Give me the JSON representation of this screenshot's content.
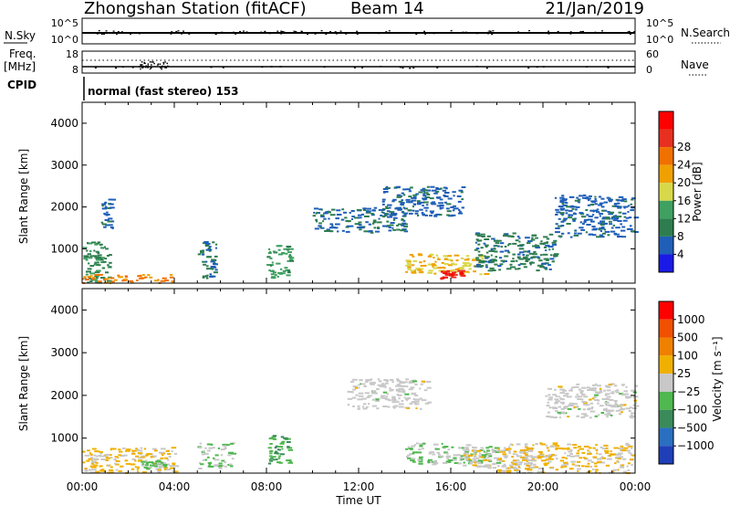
{
  "header": {
    "station": "Zhongshan Station (fitACF)",
    "beam": "Beam 14",
    "date": "21/Jan/2019"
  },
  "noise_panel": {
    "left_label": "N.Sky",
    "right_label": "N.Search",
    "left_ticks": [
      "10^5",
      "10^0"
    ],
    "right_ticks": [
      "10^5",
      "10^0"
    ]
  },
  "freq_panel": {
    "left_label_1": "Freq.",
    "left_label_2": "[MHz]",
    "right_label": "Nave",
    "left_ticks": [
      "18",
      "8"
    ],
    "right_ticks": [
      "60",
      "0"
    ]
  },
  "cpid": {
    "label": "CPID",
    "value": "normal (fast stereo) 153"
  },
  "x_axis": {
    "label": "Time UT",
    "ticks": [
      "00:00",
      "04:00",
      "08:00",
      "12:00",
      "16:00",
      "20:00",
      "00:00"
    ]
  },
  "power_panel": {
    "ylabel": "Slant Range [km]",
    "yticks": [
      "1000",
      "2000",
      "3000",
      "4000"
    ],
    "colorbar_label": "Power [dB]",
    "colorbar_ticks": [
      "4",
      "8",
      "12",
      "16",
      "20",
      "24",
      "28"
    ],
    "colors": [
      "#1a1ae6",
      "#1f5fb8",
      "#2e7d4f",
      "#3fa060",
      "#d8d84a",
      "#f0a000",
      "#f07000",
      "#e83020",
      "#ff0000"
    ]
  },
  "velocity_panel": {
    "ylabel": "Slant Range [km]",
    "yticks": [
      "1000",
      "2000",
      "3000",
      "4000"
    ],
    "colorbar_label": "Velocity [m s⁻¹]",
    "colorbar_ticks": [
      "1000",
      "500",
      "100",
      "25",
      "−25",
      "−100",
      "−500",
      "−1000"
    ],
    "colors": [
      "#1f3fb8",
      "#2a6fc0",
      "#3a8a5a",
      "#4fb84f",
      "#c8c8c8",
      "#f0b000",
      "#f08000",
      "#f05000",
      "#ff0000"
    ]
  },
  "chart_data": {
    "type": "heatmap",
    "title": "Zhongshan Station (fitACF)",
    "subtitle": "Beam 14",
    "xlabel": "Time UT",
    "x_tick_labels": [
      "00:00",
      "04:00",
      "08:00",
      "12:00",
      "16:00",
      "20:00",
      "00:00"
    ],
    "xlim_hours": [
      0,
      24
    ],
    "ylabel": "Slant Range [km]",
    "ylim_km": [
      180,
      4500
    ],
    "panels": [
      {
        "name": "Power",
        "unit": "dB",
        "colorbar_range": [
          0,
          32
        ],
        "regions": [
          {
            "t": [
              0.0,
              1.2
            ],
            "r": [
              200,
              1200
            ],
            "value": 10
          },
          {
            "t": [
              0.0,
              4.0
            ],
            "r": [
              200,
              400
            ],
            "value": 22
          },
          {
            "t": [
              0.8,
              1.3
            ],
            "r": [
              1500,
              2200
            ],
            "value": 6
          },
          {
            "t": [
              5.0,
              5.8
            ],
            "r": [
              300,
              1200
            ],
            "value": 8
          },
          {
            "t": [
              8.0,
              9.0
            ],
            "r": [
              300,
              1100
            ],
            "value": 12
          },
          {
            "t": [
              10.0,
              14.0
            ],
            "r": [
              1400,
              2000
            ],
            "value": 7
          },
          {
            "t": [
              13.0,
              16.5
            ],
            "r": [
              1800,
              2500
            ],
            "value": 6
          },
          {
            "t": [
              14.0,
              17.5
            ],
            "r": [
              400,
              900
            ],
            "value": 18
          },
          {
            "t": [
              15.5,
              16.5
            ],
            "r": [
              300,
              500
            ],
            "value": 28
          },
          {
            "t": [
              17.0,
              20.5
            ],
            "r": [
              500,
              1400
            ],
            "value": 8
          },
          {
            "t": [
              20.5,
              24.0
            ],
            "r": [
              1300,
              2300
            ],
            "value": 6
          }
        ]
      },
      {
        "name": "Velocity",
        "unit": "m s^-1",
        "colorbar_range": [
          -1000,
          1000
        ],
        "regions": [
          {
            "t": [
              0.0,
              4.0
            ],
            "r": [
              200,
              800
            ],
            "value": 150
          },
          {
            "t": [
              2.5,
              3.5
            ],
            "r": [
              300,
              500
            ],
            "value": -150
          },
          {
            "t": [
              5.0,
              6.5
            ],
            "r": [
              300,
              900
            ],
            "value": -120
          },
          {
            "t": [
              8.0,
              9.0
            ],
            "r": [
              400,
              1100
            ],
            "value": -300
          },
          {
            "t": [
              11.5,
              15.0
            ],
            "r": [
              1700,
              2400
            ],
            "value": 0
          },
          {
            "t": [
              14.0,
              18.0
            ],
            "r": [
              400,
              900
            ],
            "value": -110
          },
          {
            "t": [
              16.5,
              19.5
            ],
            "r": [
              300,
              800
            ],
            "value": 60
          },
          {
            "t": [
              20.0,
              24.0
            ],
            "r": [
              1500,
              2300
            ],
            "value": 0
          },
          {
            "t": [
              18.0,
              24.0
            ],
            "r": [
              200,
              900
            ],
            "value": 140
          }
        ]
      }
    ],
    "noise": {
      "left_scale": "10^0 to 10^5",
      "right_scale": "10^0 to 10^5"
    },
    "frequency_mhz": {
      "range": [
        8,
        18
      ],
      "nave_range": [
        0,
        60
      ]
    },
    "cpid": "normal (fast stereo) 153"
  }
}
